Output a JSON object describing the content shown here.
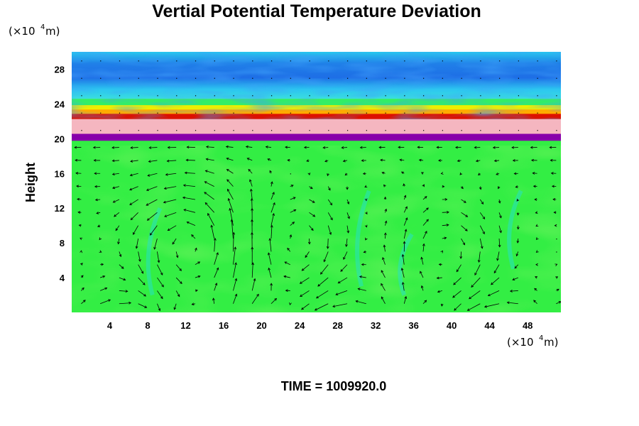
{
  "chart_data": {
    "type": "heatmap",
    "title": "Vertial Potential Temperature Deviation",
    "xlabel": "",
    "ylabel": "Height",
    "x_unit": {
      "prefix": "(×10",
      "exp": "4",
      "suffix": " m)"
    },
    "y_unit": {
      "prefix": "(×10",
      "exp": "4",
      "suffix": " m)"
    },
    "xlim": [
      0,
      51.5
    ],
    "ylim": [
      0,
      30
    ],
    "xticks": [
      4,
      8,
      12,
      16,
      20,
      24,
      28,
      32,
      36,
      40,
      44,
      48
    ],
    "yticks": [
      4,
      8,
      12,
      16,
      20,
      24,
      28
    ],
    "time_label": "TIME = 1009920.0",
    "layers": [
      {
        "from": 0,
        "to": 19.8,
        "color": "#33ee44",
        "label": "near-zero deviation (green)"
      },
      {
        "from": 19.8,
        "to": 20.6,
        "color": "#8800aa",
        "label": "strong negative (purple)"
      },
      {
        "from": 20.6,
        "to": 22.3,
        "color": "#f5b6c0",
        "label": "strong positive (pink)"
      },
      {
        "from": 22.3,
        "to": 22.9,
        "color": "#dd1100",
        "label": "red band"
      },
      {
        "from": 22.9,
        "to": 23.4,
        "color": "#ffaa00",
        "label": "orange band"
      },
      {
        "from": 23.4,
        "to": 23.9,
        "color": "#eeee00",
        "label": "yellow band"
      },
      {
        "from": 23.9,
        "to": 24.6,
        "color": "#33ee66",
        "label": "green band"
      },
      {
        "from": 24.6,
        "to": 30,
        "color": "#2aa8ee",
        "label": "upper negative (blue/cyan)"
      }
    ],
    "vectors": {
      "description": "wind vector field over lower domain; counter-rotating circulation cells",
      "cells": [
        {
          "x_center": 12.0,
          "y_center": 8,
          "rotation": "counterclockwise"
        },
        {
          "x_center": 24.0,
          "y_center": 8,
          "rotation": "clockwise"
        },
        {
          "x_center": 40.0,
          "y_center": 7,
          "rotation": "clockwise"
        }
      ]
    },
    "colors": {
      "background": "#33ee44",
      "arrow": "#000000"
    }
  }
}
